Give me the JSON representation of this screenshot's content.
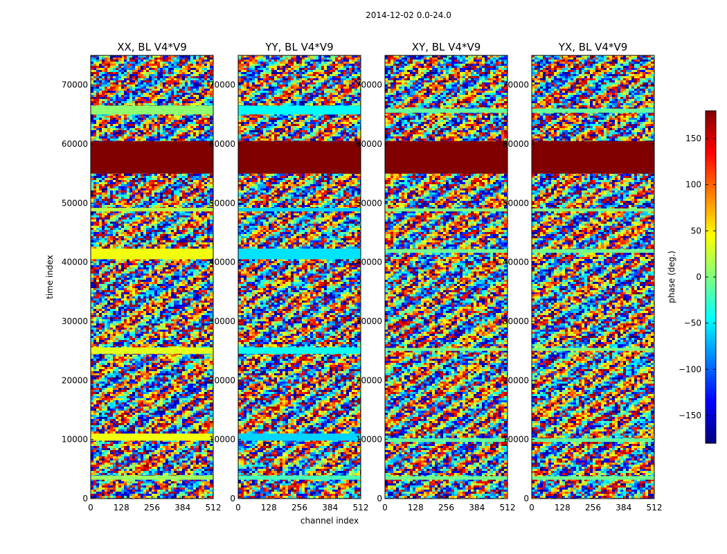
{
  "chart_data": {
    "type": "heatmap",
    "suptitle": "2014-12-02 0.0-24.0",
    "xlabel": "channel index",
    "ylabel": "time index",
    "x_range": [
      0,
      512
    ],
    "y_range": [
      0,
      75000
    ],
    "x_ticks": [
      0,
      128,
      256,
      384,
      512
    ],
    "y_ticks": [
      0,
      10000,
      20000,
      30000,
      40000,
      50000,
      60000,
      70000
    ],
    "colormap": "jet",
    "colorbar": {
      "label": "phase (deg.)",
      "range": [
        -180,
        180
      ],
      "ticks": [
        -150,
        -100,
        -50,
        0,
        50,
        100,
        150
      ]
    },
    "flagged_time_range": [
      55000,
      60500
    ],
    "flagged_phase_value": 180,
    "panels": [
      {
        "title": "XX, BL V4*V9",
        "uniform_bands": [
          {
            "t0": 3200,
            "t1": 3900,
            "phase": 10
          },
          {
            "t0": 9800,
            "t1": 11000,
            "phase": 40
          },
          {
            "t0": 24500,
            "t1": 25600,
            "phase": 35
          },
          {
            "t0": 40500,
            "t1": 42300,
            "phase": 40
          },
          {
            "t0": 48600,
            "t1": 49200,
            "phase": 20
          },
          {
            "t0": 65000,
            "t1": 66500,
            "phase": 5
          }
        ]
      },
      {
        "title": "YY, BL V4*V9",
        "uniform_bands": [
          {
            "t0": 3200,
            "t1": 3900,
            "phase": -20
          },
          {
            "t0": 9800,
            "t1": 11000,
            "phase": -60
          },
          {
            "t0": 24500,
            "t1": 25600,
            "phase": -40
          },
          {
            "t0": 40500,
            "t1": 42300,
            "phase": -55
          },
          {
            "t0": 48600,
            "t1": 49200,
            "phase": -60
          },
          {
            "t0": 65000,
            "t1": 66500,
            "phase": -45
          }
        ]
      },
      {
        "title": "XY, BL V4*V9",
        "uniform_bands": [
          {
            "t0": 3200,
            "t1": 3800,
            "phase": -5
          },
          {
            "t0": 9600,
            "t1": 10200,
            "phase": -10
          },
          {
            "t0": 25000,
            "t1": 25500,
            "phase": 0
          },
          {
            "t0": 41600,
            "t1": 42200,
            "phase": -5
          },
          {
            "t0": 48600,
            "t1": 49100,
            "phase": 0
          },
          {
            "t0": 65300,
            "t1": 66000,
            "phase": -10
          }
        ]
      },
      {
        "title": "YX, BL V4*V9",
        "uniform_bands": [
          {
            "t0": 3200,
            "t1": 3800,
            "phase": -5
          },
          {
            "t0": 9600,
            "t1": 10200,
            "phase": -10
          },
          {
            "t0": 25000,
            "t1": 25500,
            "phase": 0
          },
          {
            "t0": 41600,
            "t1": 42200,
            "phase": -5
          },
          {
            "t0": 48600,
            "t1": 49100,
            "phase": 0
          },
          {
            "t0": 65300,
            "t1": 66000,
            "phase": -10
          }
        ]
      }
    ]
  }
}
